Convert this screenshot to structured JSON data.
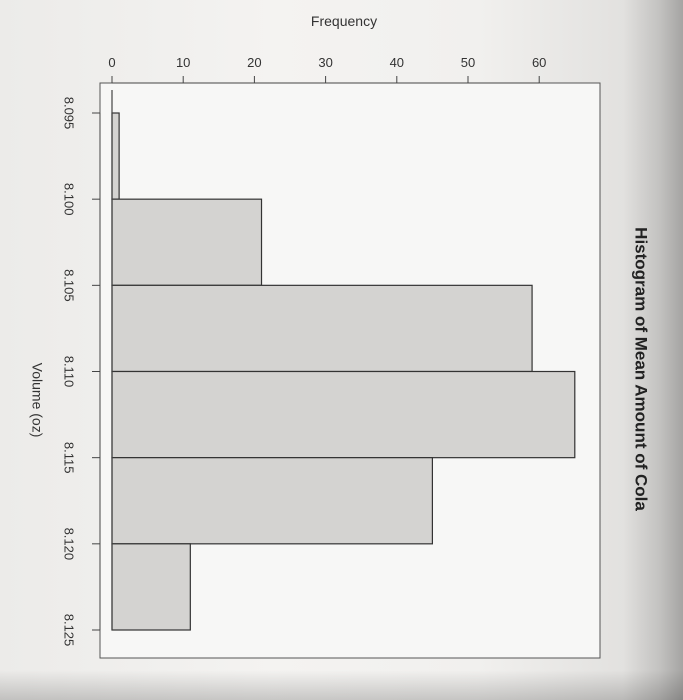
{
  "chart_data": {
    "type": "bar",
    "orientation": "histogram",
    "title": "Histogram of Mean Amount of Cola",
    "xlabel": "Volume (oz)",
    "ylabel": "Frequency",
    "bin_edges": [
      8.095,
      8.1,
      8.105,
      8.11,
      8.115,
      8.12,
      8.125
    ],
    "x_tick_labels": [
      "8.095",
      "8.100",
      "8.105",
      "8.110",
      "8.115",
      "8.120",
      "8.125"
    ],
    "values": [
      1,
      21,
      59,
      65,
      45,
      11
    ],
    "ylim": [
      0,
      65
    ],
    "y_ticks": [
      0,
      10,
      20,
      30,
      40,
      50,
      60
    ],
    "y_tick_labels": [
      "0",
      "10",
      "20",
      "30",
      "40",
      "50",
      "60"
    ],
    "grid": false,
    "bar_fill": "#d4d3d1",
    "bar_stroke": "#333333"
  }
}
